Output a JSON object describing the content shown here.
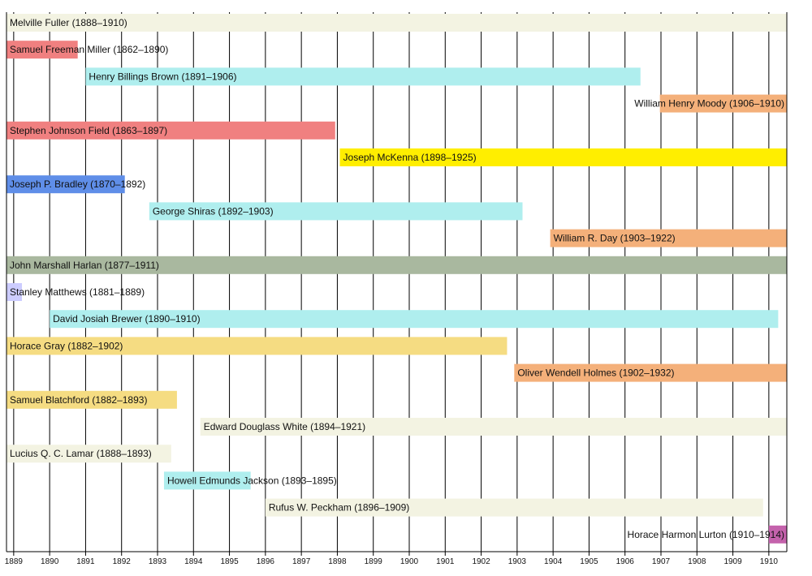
{
  "chart_data": {
    "type": "timeline",
    "title": "",
    "xlabel": "",
    "ylabel": "",
    "xlim": [
      1888.8,
      1910.5
    ],
    "grid": true,
    "x_ticks": [
      "1889",
      "1890",
      "1891",
      "1892",
      "1893",
      "1894",
      "1895",
      "1896",
      "1897",
      "1898",
      "1899",
      "1900",
      "1901",
      "1902",
      "1903",
      "1904",
      "1905",
      "1906",
      "1907",
      "1908",
      "1909",
      "1910"
    ],
    "bars": [
      {
        "label": "Melville Fuller (1888–1910)",
        "start": 1888.8,
        "end": 1910.5,
        "color": "#f3f3e2",
        "align": "left"
      },
      {
        "label": "Samuel Freeman Miller (1862–1890)",
        "start": 1888.8,
        "end": 1890.78,
        "color": "#f08080",
        "align": "left"
      },
      {
        "label": "Henry Billings Brown (1891–1906)",
        "start": 1891.0,
        "end": 1906.43,
        "color": "#afeeee",
        "align": "left"
      },
      {
        "label": "William Henry Moody (1906–1910)",
        "start": 1906.97,
        "end": 1910.5,
        "color": "#f4b07a",
        "align": "right"
      },
      {
        "label": "Stephen Johnson Field (1863–1897)",
        "start": 1888.8,
        "end": 1897.94,
        "color": "#f08080",
        "align": "left"
      },
      {
        "label": "Joseph McKenna (1898–1925)",
        "start": 1898.07,
        "end": 1910.5,
        "color": "#ffee00",
        "align": "left"
      },
      {
        "label": "Joseph P. Bradley (1870–1892)",
        "start": 1888.8,
        "end": 1892.09,
        "color": "#5f8ee8",
        "align": "left"
      },
      {
        "label": "George Shiras (1892–1903)",
        "start": 1892.77,
        "end": 1903.15,
        "color": "#afeeee",
        "align": "left"
      },
      {
        "label": "William R. Day (1903–1922)",
        "start": 1903.92,
        "end": 1910.5,
        "color": "#f4b07a",
        "align": "left"
      },
      {
        "label": "John Marshall Harlan (1877–1911)",
        "start": 1888.8,
        "end": 1910.5,
        "color": "#a9b89f",
        "align": "left"
      },
      {
        "label": "Stanley Matthews (1881–1889)",
        "start": 1888.8,
        "end": 1889.23,
        "color": "#ccccff",
        "align": "left"
      },
      {
        "label": "David Josiah Brewer (1890–1910)",
        "start": 1890.0,
        "end": 1910.26,
        "color": "#afeeee",
        "align": "left"
      },
      {
        "label": "Horace Gray (1882–1902)",
        "start": 1888.8,
        "end": 1902.72,
        "color": "#f5dc82",
        "align": "left"
      },
      {
        "label": "Oliver Wendell Holmes (1902–1932)",
        "start": 1902.92,
        "end": 1910.5,
        "color": "#f4b07a",
        "align": "left"
      },
      {
        "label": "Samuel Blatchford (1882–1893)",
        "start": 1888.8,
        "end": 1893.54,
        "color": "#f5dc82",
        "align": "left"
      },
      {
        "label": "Edward Douglass White (1894–1921)",
        "start": 1894.19,
        "end": 1910.5,
        "color": "#f3f3e2",
        "align": "left"
      },
      {
        "label": "Lucius Q. C. Lamar (1888–1893)",
        "start": 1888.8,
        "end": 1893.38,
        "color": "#f3f3e2",
        "align": "left"
      },
      {
        "label": "Howell Edmunds Jackson (1893–1895)",
        "start": 1893.18,
        "end": 1895.59,
        "color": "#afeeee",
        "align": "left"
      },
      {
        "label": "Rufus W. Peckham (1896–1909)",
        "start": 1896.0,
        "end": 1909.84,
        "color": "#f3f3e2",
        "align": "left"
      },
      {
        "label": "Horace Harmon Lurton (1910–1914)",
        "start": 1910.0,
        "end": 1910.5,
        "color": "#c462ac",
        "align": "right"
      }
    ]
  }
}
